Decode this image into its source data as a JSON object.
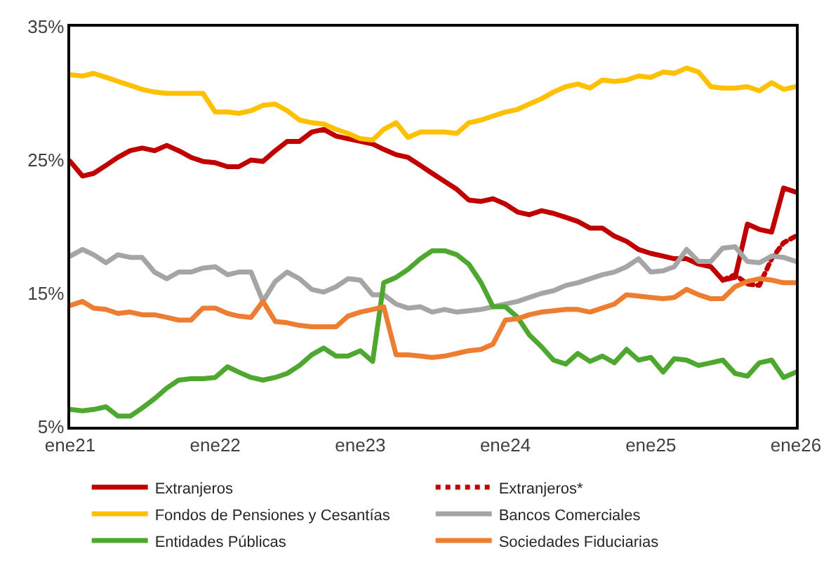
{
  "chart_data": {
    "type": "line",
    "x": [
      "2021-01",
      "2021-02",
      "2021-03",
      "2021-04",
      "2021-05",
      "2021-06",
      "2021-07",
      "2021-08",
      "2021-09",
      "2021-10",
      "2021-11",
      "2021-12",
      "2022-01",
      "2022-02",
      "2022-03",
      "2022-04",
      "2022-05",
      "2022-06",
      "2022-07",
      "2022-08",
      "2022-09",
      "2022-10",
      "2022-11",
      "2022-12",
      "2023-01",
      "2023-02",
      "2023-03",
      "2023-04",
      "2023-05",
      "2023-06",
      "2023-07",
      "2023-08",
      "2023-09",
      "2023-10",
      "2023-11",
      "2023-12",
      "2024-01",
      "2024-02",
      "2024-03",
      "2024-04",
      "2024-05",
      "2024-06",
      "2024-07",
      "2024-08",
      "2024-09",
      "2024-10",
      "2024-11",
      "2024-12",
      "2025-01",
      "2025-02",
      "2025-03",
      "2025-04",
      "2025-05",
      "2025-06",
      "2025-07",
      "2025-08",
      "2025-09",
      "2025-10",
      "2025-11",
      "2025-12",
      "2026-01"
    ],
    "series": [
      {
        "name": "Extranjeros",
        "color": "#c00000",
        "line_style": "solid",
        "values": [
          24.9,
          23.8,
          24.0,
          24.6,
          25.2,
          25.7,
          25.9,
          25.7,
          26.1,
          25.7,
          25.2,
          24.9,
          24.8,
          24.5,
          24.5,
          25.0,
          24.9,
          25.7,
          26.4,
          26.4,
          27.1,
          27.3,
          26.8,
          26.6,
          26.4,
          26.2,
          25.8,
          25.4,
          25.2,
          24.6,
          24.0,
          23.4,
          22.8,
          22.0,
          21.9,
          22.1,
          21.7,
          21.1,
          20.9,
          21.2,
          21.0,
          20.7,
          20.4,
          19.9,
          19.9,
          19.3,
          18.9,
          18.3,
          18.0,
          17.8,
          17.6,
          17.6,
          17.2,
          17.0,
          16.0,
          16.2,
          20.2,
          19.8,
          19.6,
          22.9,
          22.6
        ]
      },
      {
        "name": "Extranjeros*",
        "color": "#c00000",
        "line_style": "dotted",
        "values": [
          null,
          null,
          null,
          null,
          null,
          null,
          null,
          null,
          null,
          null,
          null,
          null,
          null,
          null,
          null,
          null,
          null,
          null,
          null,
          null,
          null,
          null,
          null,
          null,
          null,
          null,
          null,
          null,
          null,
          null,
          null,
          null,
          null,
          null,
          null,
          null,
          null,
          null,
          null,
          null,
          null,
          null,
          null,
          null,
          null,
          null,
          null,
          null,
          null,
          null,
          null,
          null,
          null,
          null,
          16.0,
          16.4,
          15.7,
          15.6,
          17.6,
          18.8,
          19.3
        ]
      },
      {
        "name": "Fondos de Pensiones y Cesantías",
        "color": "#ffc000",
        "line_style": "solid",
        "values": [
          31.4,
          31.3,
          31.5,
          31.2,
          30.9,
          30.6,
          30.3,
          30.1,
          30.0,
          30.0,
          30.0,
          30.0,
          28.6,
          28.6,
          28.5,
          28.7,
          29.1,
          29.2,
          28.7,
          28.0,
          27.8,
          27.7,
          27.3,
          27.0,
          26.6,
          26.5,
          27.3,
          27.8,
          26.7,
          27.1,
          27.1,
          27.1,
          27.0,
          27.8,
          28.0,
          28.3,
          28.6,
          28.8,
          29.2,
          29.6,
          30.1,
          30.5,
          30.7,
          30.4,
          31.0,
          30.9,
          31.0,
          31.3,
          31.2,
          31.6,
          31.5,
          31.9,
          31.6,
          30.5,
          30.4,
          30.4,
          30.5,
          30.2,
          30.8,
          30.3,
          30.5
        ]
      },
      {
        "name": "Bancos Comerciales",
        "color": "#a5a5a5",
        "line_style": "solid",
        "values": [
          17.8,
          18.3,
          17.9,
          17.3,
          17.9,
          17.7,
          17.7,
          16.6,
          16.1,
          16.6,
          16.6,
          16.9,
          17.0,
          16.4,
          16.6,
          16.6,
          14.4,
          15.9,
          16.6,
          16.1,
          15.3,
          15.1,
          15.5,
          16.1,
          16.0,
          14.9,
          14.9,
          14.2,
          13.9,
          14.0,
          13.6,
          13.8,
          13.6,
          13.7,
          13.8,
          14.0,
          14.2,
          14.4,
          14.7,
          15.0,
          15.2,
          15.6,
          15.8,
          16.1,
          16.4,
          16.6,
          17.0,
          17.6,
          16.6,
          16.7,
          17.0,
          18.3,
          17.4,
          17.4,
          18.4,
          18.5,
          17.4,
          17.3,
          17.8,
          17.7,
          17.4
        ]
      },
      {
        "name": "Entidades Públicas",
        "color": "#4ea72e",
        "line_style": "solid",
        "values": [
          6.3,
          6.2,
          6.3,
          6.5,
          5.8,
          5.8,
          6.4,
          7.1,
          7.9,
          8.5,
          8.6,
          8.6,
          8.7,
          9.5,
          9.1,
          8.7,
          8.5,
          8.7,
          9.0,
          9.6,
          10.4,
          10.9,
          10.3,
          10.3,
          10.7,
          9.9,
          15.8,
          16.2,
          16.8,
          17.6,
          18.2,
          18.2,
          17.9,
          17.2,
          15.8,
          14.0,
          14.0,
          13.2,
          11.9,
          11.0,
          10.0,
          9.7,
          10.5,
          9.9,
          10.3,
          9.8,
          10.8,
          10.0,
          10.2,
          9.1,
          10.1,
          10.0,
          9.6,
          9.8,
          10.0,
          9.0,
          8.8,
          9.8,
          10.0,
          8.7,
          9.1
        ]
      },
      {
        "name": "Sociedades Fiduciarias",
        "color": "#ed7d31",
        "line_style": "solid",
        "values": [
          14.1,
          14.4,
          13.9,
          13.8,
          13.5,
          13.6,
          13.4,
          13.4,
          13.2,
          13.0,
          13.0,
          13.9,
          13.9,
          13.5,
          13.3,
          13.2,
          14.4,
          12.9,
          12.8,
          12.6,
          12.5,
          12.5,
          12.5,
          13.3,
          13.6,
          13.8,
          14.0,
          10.4,
          10.4,
          10.3,
          10.2,
          10.3,
          10.5,
          10.7,
          10.8,
          11.2,
          13.0,
          13.1,
          13.4,
          13.6,
          13.7,
          13.8,
          13.8,
          13.6,
          13.9,
          14.2,
          14.9,
          14.8,
          14.7,
          14.6,
          14.7,
          15.3,
          14.9,
          14.6,
          14.6,
          15.5,
          15.9,
          16.1,
          16.0,
          15.8,
          15.8
        ]
      }
    ],
    "xlim": [
      "2021-01",
      "2026-01"
    ],
    "xticks": [
      {
        "value": "2021-01",
        "label": "ene21"
      },
      {
        "value": "2022-01",
        "label": "ene22"
      },
      {
        "value": "2023-01",
        "label": "ene23"
      },
      {
        "value": "2024-01",
        "label": "ene24"
      },
      {
        "value": "2025-01",
        "label": "ene25"
      },
      {
        "value": "2026-01",
        "label": "ene26"
      }
    ],
    "ylim": [
      5,
      35
    ],
    "yticks": [
      {
        "value": 5,
        "label": "5%"
      },
      {
        "value": 15,
        "label": "15%"
      },
      {
        "value": 25,
        "label": "25%"
      },
      {
        "value": 35,
        "label": "35%"
      }
    ],
    "legend": "bottom",
    "marker": "none"
  }
}
